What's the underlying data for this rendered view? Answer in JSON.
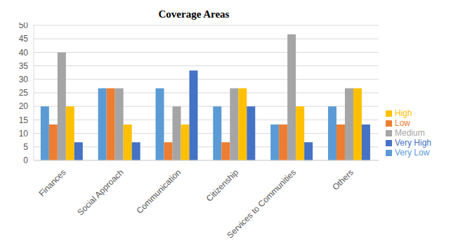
{
  "chart_data": {
    "type": "bar",
    "title": "Coverage Areas",
    "categories": [
      "Finances",
      "Social Approach",
      "Communication",
      "Citizenship",
      "Services to Communities",
      "Others"
    ],
    "series": [
      {
        "name": "Very Low",
        "color": "#5b9bd5",
        "values": [
          20,
          26.7,
          26.7,
          20,
          13.3,
          20
        ]
      },
      {
        "name": "Low",
        "color": "#ed7d31",
        "values": [
          13.3,
          26.7,
          6.7,
          6.7,
          13.3,
          13.3
        ]
      },
      {
        "name": "Medium",
        "color": "#a5a5a5",
        "values": [
          40,
          26.7,
          20,
          26.7,
          46.7,
          26.7
        ]
      },
      {
        "name": "High",
        "color": "#ffc000",
        "values": [
          20,
          13.3,
          13.3,
          26.7,
          20,
          26.7
        ]
      },
      {
        "name": "Very High",
        "color": "#4472c4",
        "values": [
          6.7,
          6.7,
          33.3,
          20,
          6.7,
          13.3
        ]
      }
    ],
    "ylim": [
      0,
      50
    ],
    "yticks": [
      0,
      5,
      10,
      15,
      20,
      25,
      30,
      35,
      40,
      45,
      50
    ],
    "grid": true,
    "legend": "right"
  }
}
